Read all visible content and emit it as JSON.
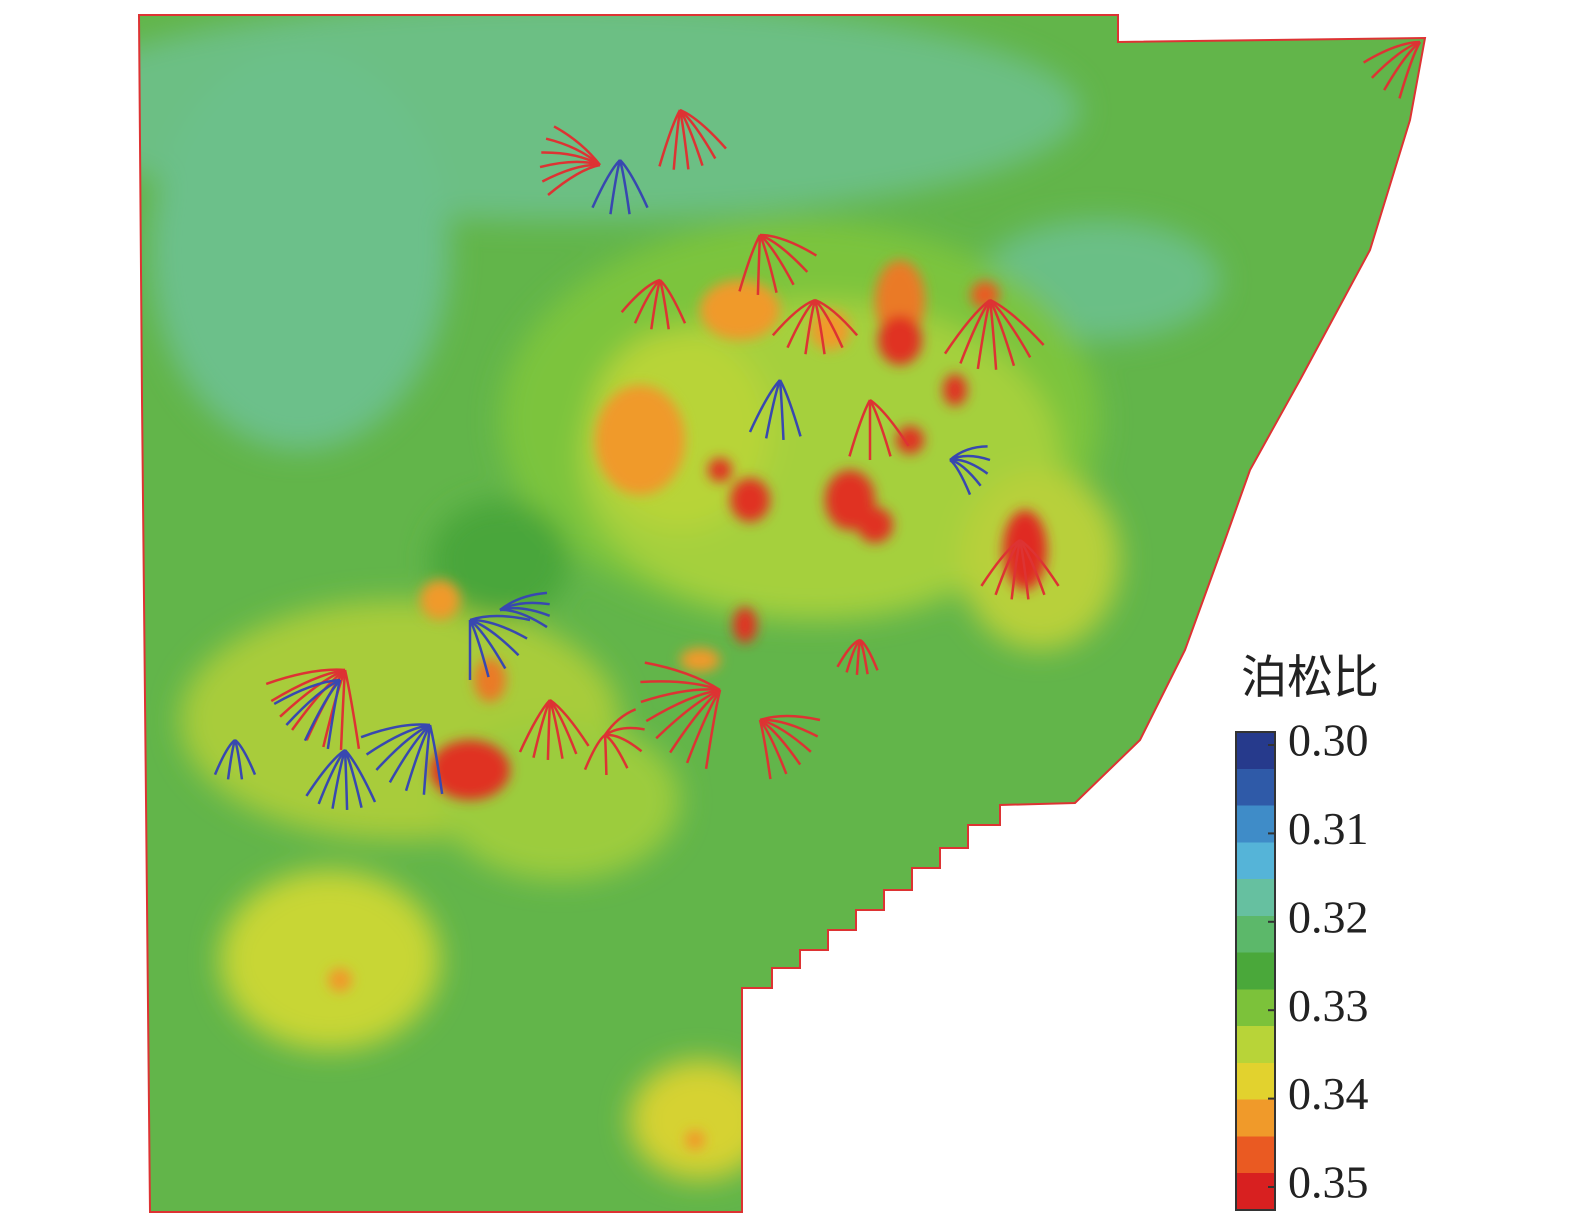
{
  "legend": {
    "title": "泊松比",
    "ticks": [
      {
        "value": 0.3,
        "label": "0.30"
      },
      0.31,
      0.32,
      0.33,
      0.34,
      0.35
    ],
    "colors": [
      "#263a8c",
      "#2f5aa8",
      "#3f8cc8",
      "#55b4d8",
      "#66c0a0",
      "#5cb86a",
      "#4aa83a",
      "#7cc23a",
      "#b8d438",
      "#e2d22e",
      "#f09a2a",
      "#ea5a22",
      "#d82020"
    ]
  }
}
